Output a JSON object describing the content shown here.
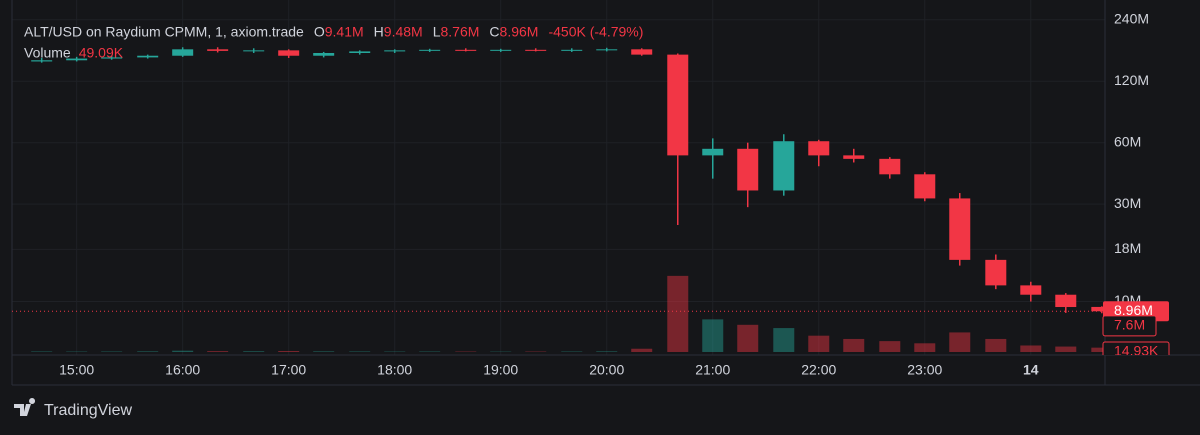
{
  "chart_data": {
    "type": "candlestick",
    "title": "ALT/USD on Raydium CPMM, 1, axiom.trade",
    "ohlc_legend": [
      {
        "label": "O",
        "value": "9.41M"
      },
      {
        "label": "H",
        "value": "9.48M"
      },
      {
        "label": "L",
        "value": "8.76M"
      },
      {
        "label": "C",
        "value": "8.96M"
      }
    ],
    "change": "-450K (-4.79%)",
    "volume_legend": {
      "label": "Volume",
      "value": "49.09K"
    },
    "up_color": "#26a69a",
    "down_color": "#f23645",
    "log_scale": true,
    "grid": true,
    "x": [
      14.67,
      15,
      15.33,
      15.67,
      16,
      16.33,
      16.67,
      17,
      17.33,
      17.67,
      18,
      18.33,
      18.67,
      19,
      19.33,
      19.67,
      20,
      20.33,
      20.67,
      21,
      21.33,
      21.67,
      22,
      22.33,
      22.67,
      23,
      23.33,
      23.67,
      24,
      24.33,
      24.67
    ],
    "open": [
      150,
      152,
      155,
      157,
      160,
      172,
      169,
      170,
      160,
      165,
      168,
      170,
      171,
      170,
      171,
      170,
      171,
      172,
      162,
      52,
      56,
      35,
      61,
      52,
      50,
      42,
      32,
      16,
      12,
      10.8,
      9.41
    ],
    "high": [
      156,
      158,
      160,
      162,
      176,
      176,
      174,
      172,
      167,
      170,
      172,
      173,
      174,
      173,
      174,
      174,
      175,
      174,
      164,
      63,
      60,
      66,
      62,
      56,
      51,
      43,
      34,
      17,
      12.5,
      11,
      9.48
    ],
    "low": [
      148,
      150,
      153,
      155,
      158,
      166,
      165,
      156,
      157,
      162,
      165,
      167,
      168,
      167,
      168,
      167,
      168,
      160,
      23.7,
      40,
      29,
      33,
      46,
      48,
      40,
      31,
      15,
      11.5,
      10,
      8.8,
      8.76
    ],
    "close": [
      152,
      155,
      157,
      160,
      172,
      169,
      170,
      160,
      165,
      168,
      170,
      171,
      170,
      171,
      170,
      171,
      172,
      162,
      52,
      56,
      35,
      61,
      52,
      50,
      42,
      32,
      16,
      12,
      10.8,
      9.4,
      8.96
    ],
    "volume": [
      50,
      40,
      45,
      60,
      120,
      80,
      70,
      90,
      60,
      50,
      40,
      45,
      40,
      35,
      40,
      45,
      60,
      300,
      7000,
      3000,
      2500,
      2200,
      1500,
      1200,
      1000,
      800,
      1800,
      1200,
      600,
      500,
      400
    ],
    "xlim": [
      14.39,
      24.7
    ],
    "ylim": [
      5.66,
      300
    ],
    "vlim": [
      0,
      8000
    ],
    "xticks": [
      {
        "value": 15,
        "label": "15:00"
      },
      {
        "value": 16,
        "label": "16:00"
      },
      {
        "value": 17,
        "label": "17:00"
      },
      {
        "value": 18,
        "label": "18:00"
      },
      {
        "value": 19,
        "label": "19:00"
      },
      {
        "value": 20,
        "label": "20:00"
      },
      {
        "value": 21,
        "label": "21:00"
      },
      {
        "value": 22,
        "label": "22:00"
      },
      {
        "value": 23,
        "label": "23:00"
      },
      {
        "value": 24,
        "label": "14"
      }
    ],
    "yticks": [
      {
        "value": 240,
        "label": "240M"
      },
      {
        "value": 120,
        "label": "120M"
      },
      {
        "value": 60,
        "label": "60M"
      },
      {
        "value": 30,
        "label": "30M"
      },
      {
        "value": 18,
        "label": "18M"
      },
      {
        "value": 10,
        "label": "10M"
      }
    ],
    "last_price": {
      "value": 8.96,
      "label": "8.96M"
    },
    "marker_price": {
      "value": 7.6,
      "label": "7.6M"
    },
    "volume_axis_label": "14.93K",
    "brand": "TradingView"
  }
}
